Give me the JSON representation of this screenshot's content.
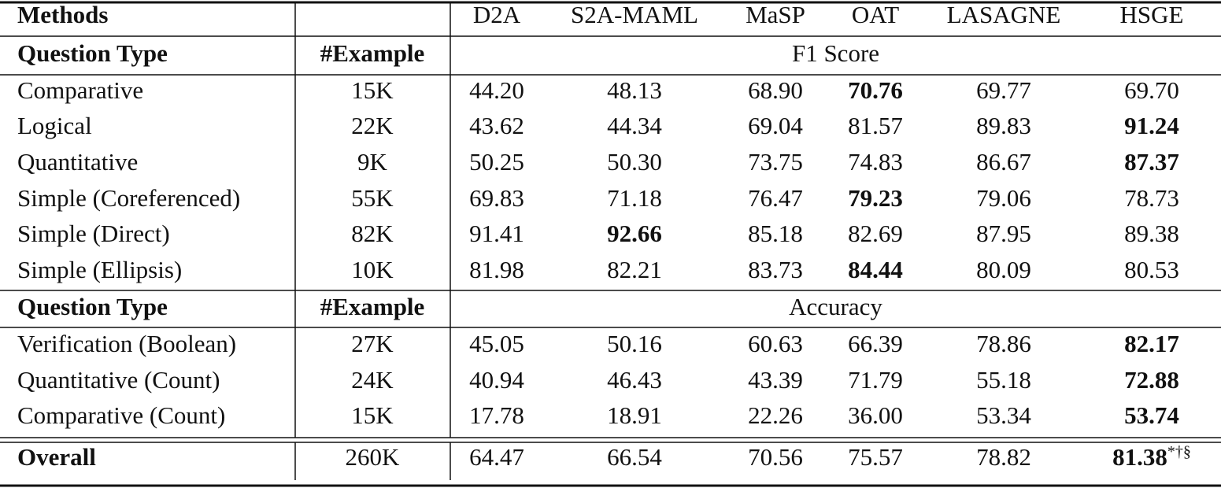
{
  "header": {
    "methods_label": "Methods",
    "models": [
      "D2A",
      "S2A-MAML",
      "MaSP",
      "OAT",
      "LASAGNE",
      "HSGE"
    ]
  },
  "sections": [
    {
      "question_type_label": "Question Type",
      "example_label": "#Example",
      "metric": "F1 Score",
      "rows": [
        {
          "type": "Comparative",
          "examples": "15K",
          "values": [
            "44.20",
            "48.13",
            "68.90",
            "70.76",
            "69.77",
            "69.70"
          ],
          "bold_column": 3
        },
        {
          "type": "Logical",
          "examples": "22K",
          "values": [
            "43.62",
            "44.34",
            "69.04",
            "81.57",
            "89.83",
            "91.24"
          ],
          "bold_column": 5
        },
        {
          "type": "Quantitative",
          "examples": "9K",
          "values": [
            "50.25",
            "50.30",
            "73.75",
            "74.83",
            "86.67",
            "87.37"
          ],
          "bold_column": 5
        },
        {
          "type": "Simple (Coreferenced)",
          "examples": "55K",
          "values": [
            "69.83",
            "71.18",
            "76.47",
            "79.23",
            "79.06",
            "78.73"
          ],
          "bold_column": 3
        },
        {
          "type": "Simple (Direct)",
          "examples": "82K",
          "values": [
            "91.41",
            "92.66",
            "85.18",
            "82.69",
            "87.95",
            "89.38"
          ],
          "bold_column": 1
        },
        {
          "type": "Simple (Ellipsis)",
          "examples": "10K",
          "values": [
            "81.98",
            "82.21",
            "83.73",
            "84.44",
            "80.09",
            "80.53"
          ],
          "bold_column": 3
        }
      ]
    },
    {
      "question_type_label": "Question Type",
      "example_label": "#Example",
      "metric": "Accuracy",
      "rows": [
        {
          "type": "Verification (Boolean)",
          "examples": "27K",
          "values": [
            "45.05",
            "50.16",
            "60.63",
            "66.39",
            "78.86",
            "82.17"
          ],
          "bold_column": 5
        },
        {
          "type": "Quantitative (Count)",
          "examples": "24K",
          "values": [
            "40.94",
            "46.43",
            "43.39",
            "71.79",
            "55.18",
            "72.88"
          ],
          "bold_column": 5
        },
        {
          "type": "Comparative (Count)",
          "examples": "15K",
          "values": [
            "17.78",
            "18.91",
            "22.26",
            "36.00",
            "53.34",
            "53.74"
          ],
          "bold_column": 5
        }
      ]
    }
  ],
  "overall": {
    "label": "Overall",
    "examples": "260K",
    "values": [
      "64.47",
      "66.54",
      "70.56",
      "75.57",
      "78.82",
      "81.38"
    ],
    "bold_column": 5,
    "marker": "*†§"
  }
}
